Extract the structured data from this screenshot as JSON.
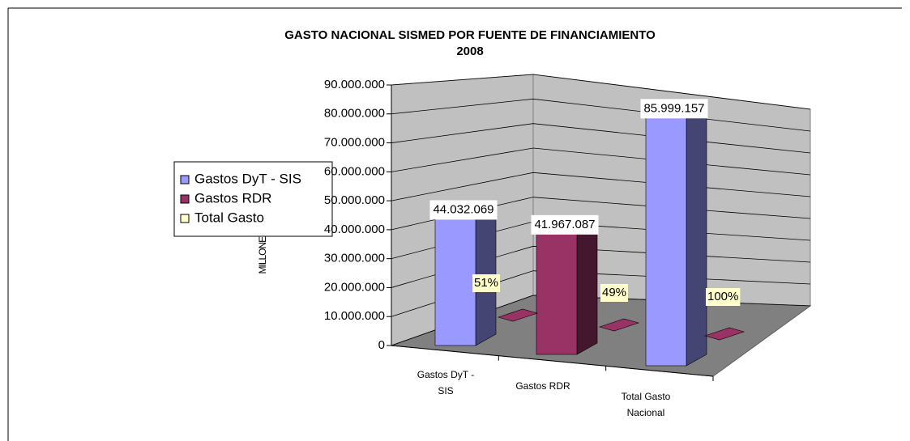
{
  "chart_data": {
    "type": "bar3d",
    "title": "GASTO NACIONAL SISMED POR FUENTE DE FINANCIAMIENTO",
    "subtitle": "2008",
    "y_label": "MILLONES DE SOLES",
    "categories": [
      "Gastos DyT - SIS",
      "Gastos RDR",
      "Total Gasto Nacional"
    ],
    "series": [
      {
        "name": "Gastos DyT - SIS",
        "color": "#9999ff",
        "values": [
          44032069,
          null,
          85999157
        ],
        "value_labels": [
          "44.032.069",
          null,
          "85.999.157"
        ]
      },
      {
        "name": "Gastos RDR",
        "color": "#993366",
        "values": [
          null,
          41967087,
          null
        ],
        "value_labels": [
          null,
          "41.967.087",
          null
        ]
      },
      {
        "name": "Total Gasto",
        "color": "#ffffcc",
        "mark_color": "#993366",
        "values": [
          0.51,
          0.49,
          1
        ],
        "value_labels": [
          "51%",
          "49%",
          "100%"
        ]
      }
    ],
    "ylim": [
      0,
      90000000
    ],
    "yticks": [
      0,
      {
        "value": 10000000,
        "label": "10.000.000"
      },
      {
        "value": 20000000,
        "label": "20.000.000"
      },
      {
        "value": 30000000,
        "label": "30.000.000"
      },
      {
        "value": 40000000,
        "label": "40.000.000"
      },
      {
        "value": 50000000,
        "label": "50.000.000"
      },
      {
        "value": 60000000,
        "label": "60.000.000"
      },
      {
        "value": 70000000,
        "label": "70.000.000"
      },
      {
        "value": 80000000,
        "label": "80.000.000"
      },
      {
        "value": 90000000,
        "label": "90.000.000"
      }
    ],
    "grid": true,
    "legend": "left"
  }
}
